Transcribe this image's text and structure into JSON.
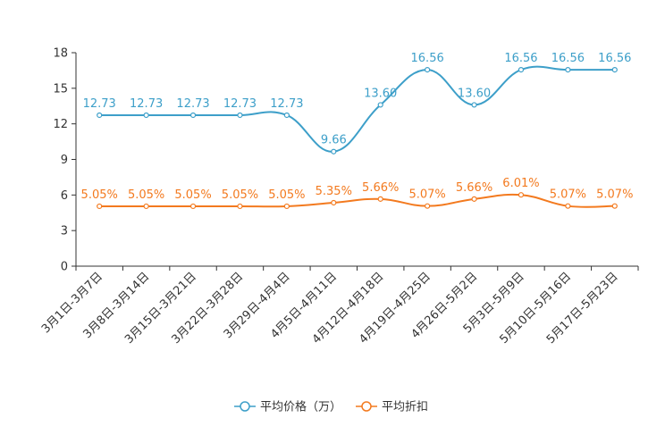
{
  "chart_data": {
    "type": "line",
    "title": "",
    "xlabel": "",
    "ylabel": "",
    "ylim": [
      0,
      18
    ],
    "yticks": [
      0,
      3,
      6,
      9,
      12,
      15,
      18
    ],
    "categories": [
      "3月1日-3月7日",
      "3月8日-3月14日",
      "3月15日-3月21日",
      "3月22日-3月28日",
      "3月29日-4月4日",
      "4月5日-4月11日",
      "4月12日-4月18日",
      "4月19日-4月25日",
      "4月26日-5月2日",
      "5月3日-5月9日",
      "5月10日-5月16日",
      "5月17日-5月23日"
    ],
    "series": [
      {
        "name": "平均价格（万）",
        "color": "#3d9fc9",
        "values": [
          12.73,
          12.73,
          12.73,
          12.73,
          12.73,
          9.66,
          13.6,
          16.56,
          13.6,
          16.56,
          16.56,
          16.56
        ],
        "labels": [
          "12.73",
          "12.73",
          "12.73",
          "12.73",
          "12.73",
          "9.66",
          "13.60",
          "16.56",
          "13.60",
          "16.56",
          "16.56",
          "16.56"
        ]
      },
      {
        "name": "平均折扣",
        "color": "#f37a1f",
        "values": [
          5.05,
          5.05,
          5.05,
          5.05,
          5.05,
          5.35,
          5.66,
          5.07,
          5.66,
          6.01,
          5.07,
          5.07
        ],
        "labels": [
          "5.05%",
          "5.05%",
          "5.05%",
          "5.05%",
          "5.05%",
          "5.35%",
          "5.66%",
          "5.07%",
          "5.66%",
          "6.01%",
          "5.07%",
          "5.07%"
        ]
      }
    ],
    "legend_position": "bottom-center",
    "grid": false
  }
}
